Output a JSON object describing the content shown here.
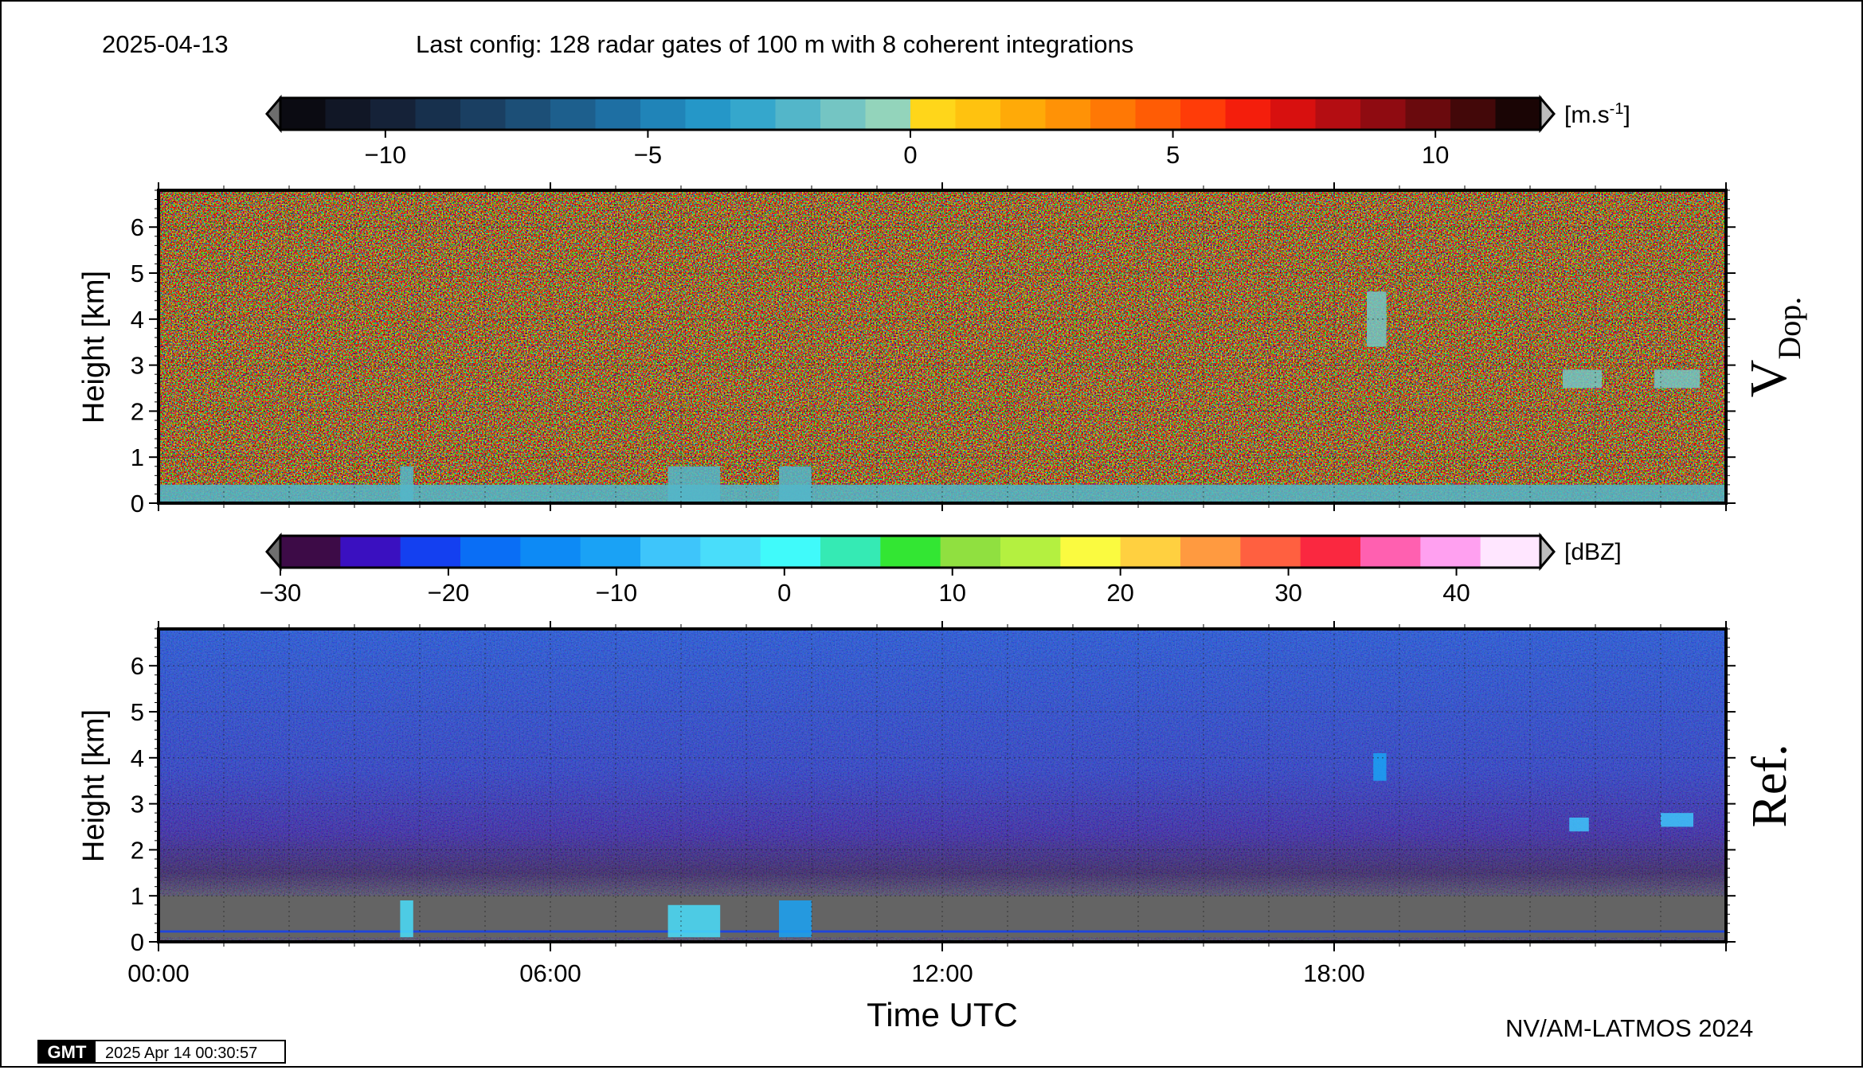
{
  "header": {
    "date": "2025-04-13",
    "config": "Last config: 128 radar gates of 100 m with 8 coherent integrations"
  },
  "footer": {
    "credit": "NV/AM-LATMOS 2024",
    "gmt_logo": "GMT",
    "gmt_timestamp": "2025 Apr 14 00:30:57"
  },
  "colors": {
    "doppler_cmap": [
      "#0b0b12",
      "#111726",
      "#152238",
      "#17304d",
      "#1a3f62",
      "#1c4f77",
      "#1d5f8d",
      "#1e6fa3",
      "#2084b8",
      "#2597c8",
      "#35a7cc",
      "#53b6c9",
      "#74c5c3",
      "#93d4bb",
      "#ffd61a",
      "#ffc20f",
      "#ffaa08",
      "#ff9206",
      "#ff7805",
      "#ff5c05",
      "#ff3c08",
      "#f41e0c",
      "#d8100f",
      "#b40d12",
      "#8f0b11",
      "#6a0a0d",
      "#430809",
      "#1a0505"
    ],
    "reflectivity_cmap": [
      "#3d0b47",
      "#3a10c0",
      "#1440f0",
      "#0a6ef5",
      "#0d8af5",
      "#1aa2f5",
      "#3ec5fa",
      "#49ddfa",
      "#40fafa",
      "#35eab4",
      "#33e633",
      "#90e040",
      "#b4f040",
      "#fafa40",
      "#ffd040",
      "#ff9a40",
      "#ff6040",
      "#fa2840",
      "#ff60b0",
      "#ffa0f0",
      "#ffe6ff"
    ],
    "no_signal_grey": "#646464"
  },
  "panels": {
    "doppler": {
      "label": "V",
      "label_sub": "Dop."
    },
    "reflectivity": {
      "label": "Ref."
    }
  },
  "chart_data": [
    {
      "type": "colorbar",
      "name": "Doppler velocity colorbar",
      "unit": "[m.s-1]",
      "range": [
        -12,
        12
      ],
      "extend": "both",
      "ticks": [
        -10,
        -5,
        0,
        5,
        10
      ],
      "tick_labels": [
        "−10",
        "−5",
        "0",
        "5",
        "10"
      ]
    },
    {
      "type": "heatmap",
      "name": "V Dop.",
      "variable": "Doppler velocity",
      "ylabel": "Height [km]",
      "ylim": [
        0,
        6.8
      ],
      "yticks": [
        0,
        1,
        2,
        3,
        4,
        5,
        6
      ],
      "xlim": [
        0,
        24
      ],
      "grid": true,
      "features": [
        {
          "description": "near-surface layer",
          "time_h": [
            0,
            24
          ],
          "height_km": [
            0,
            0.4
          ],
          "value_ms": -2
        },
        {
          "description": "echo",
          "time_h": [
            3.7,
            3.9
          ],
          "height_km": [
            0,
            0.8
          ],
          "value_ms": -2
        },
        {
          "description": "echo",
          "time_h": [
            7.8,
            8.6
          ],
          "height_km": [
            0,
            0.8
          ],
          "value_ms": -2
        },
        {
          "description": "echo",
          "time_h": [
            9.5,
            10.0
          ],
          "height_km": [
            0,
            0.8
          ],
          "value_ms": -2
        },
        {
          "description": "streak",
          "time_h": [
            18.5,
            18.8
          ],
          "height_km": [
            3.4,
            4.6
          ],
          "value_ms": -1
        },
        {
          "description": "patch",
          "time_h": [
            21.5,
            22.1
          ],
          "height_km": [
            2.5,
            2.9
          ],
          "value_ms": -1
        },
        {
          "description": "patch",
          "time_h": [
            22.9,
            23.6
          ],
          "height_km": [
            2.5,
            2.9
          ],
          "value_ms": -1
        }
      ]
    },
    {
      "type": "colorbar",
      "name": "Reflectivity colorbar",
      "unit": "[dBZ]",
      "range": [
        -30,
        45
      ],
      "extend": "both",
      "ticks": [
        -30,
        -20,
        -10,
        0,
        10,
        20,
        30,
        40
      ],
      "tick_labels": [
        "−30",
        "−20",
        "−10",
        "0",
        "10",
        "20",
        "30",
        "40"
      ]
    },
    {
      "type": "heatmap",
      "name": "Ref.",
      "variable": "Reflectivity",
      "ylabel": "Height [km]",
      "xlabel": "Time UTC",
      "ylim": [
        0,
        6.8
      ],
      "yticks": [
        0,
        1,
        2,
        3,
        4,
        5,
        6
      ],
      "xlim": [
        0,
        24
      ],
      "xticks": [
        0,
        6,
        12,
        18
      ],
      "xtick_labels": [
        "00:00",
        "06:00",
        "12:00",
        "18:00"
      ],
      "grid": true,
      "features": [
        {
          "description": "no-signal region",
          "time_h": [
            0,
            24
          ],
          "height_km": [
            0.1,
            1.0
          ],
          "value_dbz": null
        },
        {
          "description": "low line",
          "time_h": [
            0,
            24
          ],
          "height_km": [
            0.2,
            0.25
          ],
          "value_dbz": -22
        },
        {
          "description": "echo",
          "time_h": [
            3.7,
            3.9
          ],
          "height_km": [
            0.1,
            0.9
          ],
          "value_dbz": -5
        },
        {
          "description": "echo",
          "time_h": [
            7.8,
            8.6
          ],
          "height_km": [
            0.1,
            0.8
          ],
          "value_dbz": -2
        },
        {
          "description": "echo",
          "time_h": [
            9.5,
            10.0
          ],
          "height_km": [
            0.1,
            0.9
          ],
          "value_dbz": -10
        },
        {
          "description": "streak",
          "time_h": [
            18.6,
            18.8
          ],
          "height_km": [
            3.5,
            4.1
          ],
          "value_dbz": -10
        },
        {
          "description": "patch",
          "time_h": [
            21.6,
            21.9
          ],
          "height_km": [
            2.4,
            2.7
          ],
          "value_dbz": -8
        },
        {
          "description": "patch",
          "time_h": [
            23.0,
            23.5
          ],
          "height_km": [
            2.5,
            2.8
          ],
          "value_dbz": -8
        }
      ]
    }
  ]
}
